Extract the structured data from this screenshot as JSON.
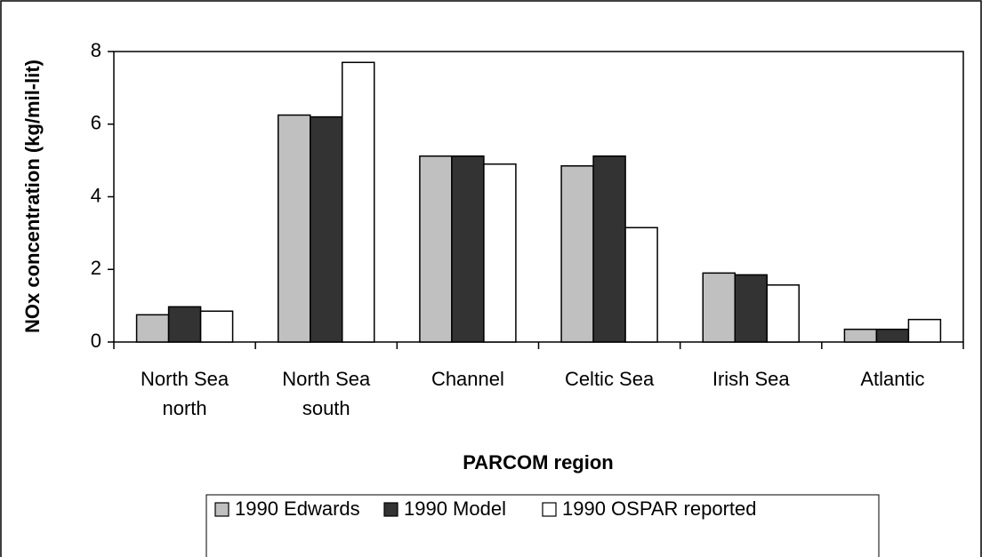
{
  "chart_data": {
    "type": "bar",
    "categories": [
      "North Sea north",
      "North Sea south",
      "Channel",
      "Celtic Sea",
      "Irish Sea",
      "Atlantic"
    ],
    "series": [
      {
        "name": "1990 Edwards",
        "color": "#c0c0c0",
        "values": [
          0.75,
          6.25,
          5.12,
          4.85,
          1.9,
          0.35
        ]
      },
      {
        "name": "1990 Model",
        "color": "#333333",
        "values": [
          0.97,
          6.2,
          5.12,
          5.12,
          1.85,
          0.35
        ]
      },
      {
        "name": "1990 OSPAR reported",
        "color": "#ffffff",
        "values": [
          0.85,
          7.7,
          4.9,
          3.15,
          1.57,
          0.62
        ]
      }
    ],
    "ylabel": "NOx concentration (kg/mil-lit)",
    "xlabel": "PARCOM region",
    "ylim": [
      0,
      8
    ],
    "yticks": [
      0,
      2,
      4,
      6,
      8
    ],
    "grid": false,
    "legend": "bottom"
  }
}
